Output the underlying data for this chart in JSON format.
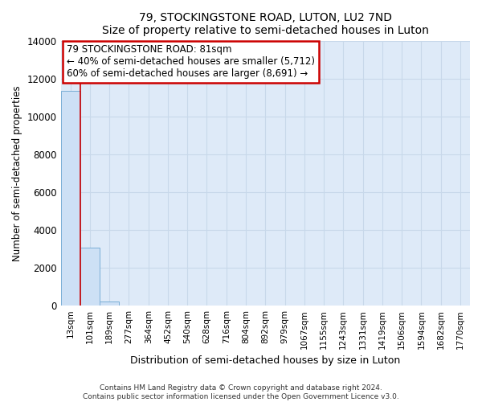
{
  "title1": "79, STOCKINGSTONE ROAD, LUTON, LU2 7ND",
  "title2": "Size of property relative to semi-detached houses in Luton",
  "xlabel": "Distribution of semi-detached houses by size in Luton",
  "ylabel": "Number of semi-detached properties",
  "bar_color": "#cde0f5",
  "bar_edge_color": "#7aaed6",
  "annotation_box_text": "79 STOCKINGSTONE ROAD: 81sqm\n← 40% of semi-detached houses are smaller (5,712)\n60% of semi-detached houses are larger (8,691) →",
  "annotation_box_facecolor": "#ffffff",
  "annotation_box_edgecolor": "#cc0000",
  "property_line_color": "#cc0000",
  "categories": [
    "13sqm",
    "101sqm",
    "189sqm",
    "277sqm",
    "364sqm",
    "452sqm",
    "540sqm",
    "628sqm",
    "716sqm",
    "804sqm",
    "892sqm",
    "979sqm",
    "1067sqm",
    "1155sqm",
    "1243sqm",
    "1331sqm",
    "1419sqm",
    "1506sqm",
    "1594sqm",
    "1682sqm",
    "1770sqm"
  ],
  "values": [
    11350,
    3050,
    200,
    10,
    3,
    1,
    0,
    0,
    0,
    0,
    0,
    0,
    0,
    0,
    0,
    0,
    0,
    0,
    0,
    0,
    0
  ],
  "property_bin_index": 1,
  "ylim": [
    0,
    14000
  ],
  "yticks": [
    0,
    2000,
    4000,
    6000,
    8000,
    10000,
    12000,
    14000
  ],
  "grid_color": "#c8d8ea",
  "background_color": "#deeaf8",
  "footnote1": "Contains HM Land Registry data © Crown copyright and database right 2024.",
  "footnote2": "Contains public sector information licensed under the Open Government Licence v3.0."
}
